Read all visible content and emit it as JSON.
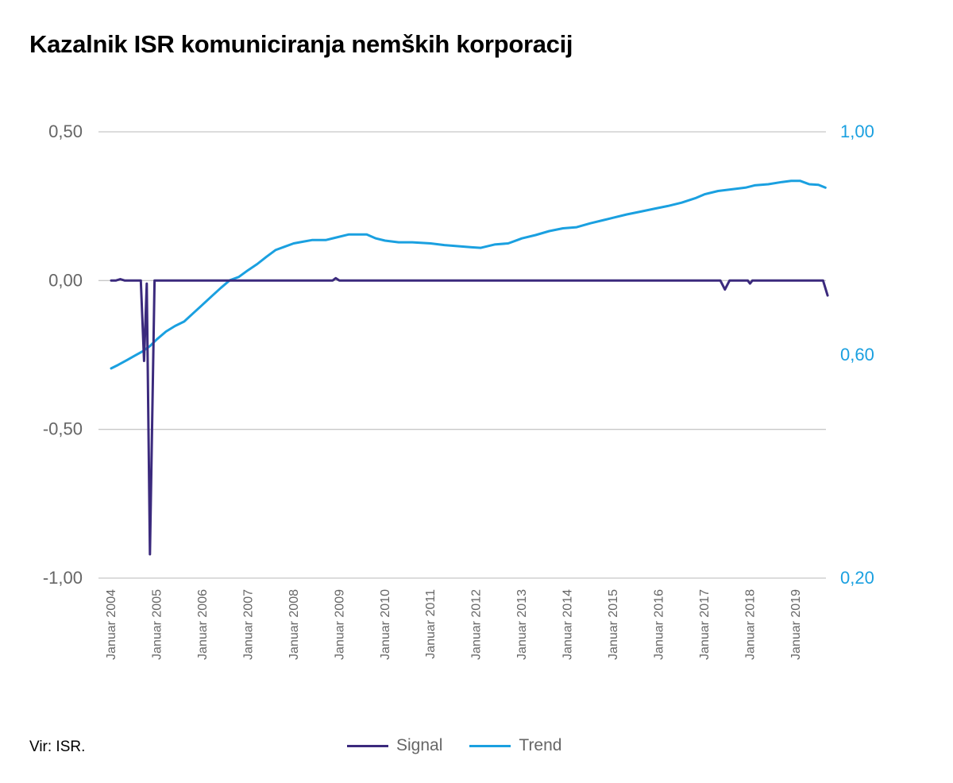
{
  "title": "Kazalnik ISR komuniciranja nemških korporacij",
  "source": "Vir: ISR.",
  "colors": {
    "signal": "#3b2a7d",
    "trend": "#1aa0e0",
    "grid": "#c8c8c8",
    "left_axis_text": "#666666",
    "right_axis_text": "#1aa0e0"
  },
  "chart_data": {
    "type": "line",
    "title": "Kazalnik ISR komuniciranja nemških korporacij",
    "x_labels": [
      "Januar 2004",
      "Januar 2005",
      "Januar 2006",
      "Januar 2007",
      "Januar 2008",
      "Januar 2009",
      "Januar 2010",
      "Januar 2011",
      "Januar 2012",
      "Januar 2013",
      "Januar 2014",
      "Januar 2015",
      "Januar 2016",
      "Januar 2017",
      "Januar 2018",
      "Januar 2019"
    ],
    "x_range": [
      2004.0,
      2019.75
    ],
    "y_left": {
      "range": [
        -1.0,
        0.5
      ],
      "ticks": [
        "0,50",
        "0,00",
        "-0,50",
        "-1,00"
      ],
      "tick_values": [
        0.5,
        0.0,
        -0.5,
        -1.0
      ]
    },
    "y_right": {
      "range": [
        0.2,
        1.0
      ],
      "ticks": [
        "1,00",
        "0,60",
        "0,20"
      ],
      "tick_values": [
        1.0,
        0.6,
        0.2
      ]
    },
    "grid": true,
    "legend_position": "bottom",
    "series": [
      {
        "name": "Signal",
        "axis": "left",
        "points": [
          [
            2004.0,
            0.0
          ],
          [
            2004.1,
            0.0
          ],
          [
            2004.2,
            0.005
          ],
          [
            2004.3,
            0.0
          ],
          [
            2004.55,
            0.0
          ],
          [
            2004.65,
            0.0
          ],
          [
            2004.72,
            -0.27
          ],
          [
            2004.78,
            -0.01
          ],
          [
            2004.85,
            -0.92
          ],
          [
            2004.95,
            0.0
          ],
          [
            2008.85,
            0.0
          ],
          [
            2008.92,
            0.008
          ],
          [
            2009.0,
            0.0
          ],
          [
            2017.35,
            0.0
          ],
          [
            2017.45,
            -0.03
          ],
          [
            2017.55,
            0.0
          ],
          [
            2017.95,
            0.0
          ],
          [
            2018.0,
            -0.01
          ],
          [
            2018.05,
            0.0
          ],
          [
            2019.6,
            0.0
          ],
          [
            2019.7,
            -0.05
          ]
        ]
      },
      {
        "name": "Trend",
        "axis": "right",
        "points": [
          [
            2004.0,
            0.576
          ],
          [
            2004.15,
            0.582
          ],
          [
            2004.35,
            0.591
          ],
          [
            2004.5,
            0.598
          ],
          [
            2004.7,
            0.607
          ],
          [
            2004.85,
            0.616
          ],
          [
            2005.0,
            0.628
          ],
          [
            2005.2,
            0.642
          ],
          [
            2005.4,
            0.652
          ],
          [
            2005.6,
            0.66
          ],
          [
            2005.8,
            0.675
          ],
          [
            2006.0,
            0.69
          ],
          [
            2006.2,
            0.705
          ],
          [
            2006.4,
            0.72
          ],
          [
            2006.6,
            0.734
          ],
          [
            2006.8,
            0.74
          ],
          [
            2007.0,
            0.752
          ],
          [
            2007.2,
            0.763
          ],
          [
            2007.4,
            0.776
          ],
          [
            2007.6,
            0.788
          ],
          [
            2007.8,
            0.794
          ],
          [
            2008.0,
            0.8
          ],
          [
            2008.2,
            0.803
          ],
          [
            2008.4,
            0.806
          ],
          [
            2008.7,
            0.806
          ],
          [
            2008.9,
            0.81
          ],
          [
            2009.2,
            0.816
          ],
          [
            2009.6,
            0.816
          ],
          [
            2009.8,
            0.809
          ],
          [
            2010.0,
            0.805
          ],
          [
            2010.3,
            0.802
          ],
          [
            2010.6,
            0.802
          ],
          [
            2011.0,
            0.8
          ],
          [
            2011.3,
            0.797
          ],
          [
            2011.6,
            0.795
          ],
          [
            2011.9,
            0.793
          ],
          [
            2012.1,
            0.792
          ],
          [
            2012.4,
            0.798
          ],
          [
            2012.7,
            0.8
          ],
          [
            2012.9,
            0.806
          ],
          [
            2013.0,
            0.809
          ],
          [
            2013.3,
            0.815
          ],
          [
            2013.6,
            0.822
          ],
          [
            2013.9,
            0.827
          ],
          [
            2014.2,
            0.829
          ],
          [
            2014.5,
            0.836
          ],
          [
            2014.8,
            0.842
          ],
          [
            2015.0,
            0.846
          ],
          [
            2015.3,
            0.852
          ],
          [
            2015.6,
            0.857
          ],
          [
            2015.9,
            0.862
          ],
          [
            2016.2,
            0.867
          ],
          [
            2016.5,
            0.873
          ],
          [
            2016.8,
            0.881
          ],
          [
            2017.0,
            0.888
          ],
          [
            2017.3,
            0.894
          ],
          [
            2017.6,
            0.897
          ],
          [
            2017.9,
            0.9
          ],
          [
            2018.1,
            0.904
          ],
          [
            2018.4,
            0.906
          ],
          [
            2018.7,
            0.91
          ],
          [
            2018.9,
            0.912
          ],
          [
            2019.1,
            0.912
          ],
          [
            2019.3,
            0.906
          ],
          [
            2019.5,
            0.905
          ],
          [
            2019.65,
            0.9
          ]
        ]
      }
    ]
  }
}
